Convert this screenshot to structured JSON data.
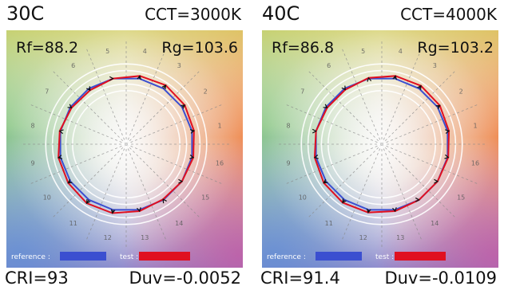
{
  "chart_data": [
    {
      "type": "color-vector-graphic",
      "panel_title": "30C",
      "cct": "CCT=3000K",
      "rf": "Rf=88.2",
      "rg": "Rg=103.6",
      "cri": "CRI=93",
      "duv": "Duv=-0.0052",
      "hue_bins": [
        "1",
        "2",
        "3",
        "4",
        "5",
        "6",
        "7",
        "8",
        "9",
        "10",
        "11",
        "12",
        "13",
        "14",
        "15",
        "16"
      ],
      "legend": {
        "reference_label": "reference :",
        "test_label": "test :"
      },
      "series": [
        {
          "name": "reference",
          "color": "#3b4fd0",
          "radius": [
            1,
            1,
            1,
            1,
            1,
            1,
            1,
            1,
            1,
            1,
            1,
            1,
            1,
            1,
            1,
            1
          ]
        },
        {
          "name": "test",
          "color": "#e01020",
          "radius": [
            1.03,
            1.05,
            1.06,
            1.04,
            1.0,
            0.97,
            0.98,
            1.01,
            1.03,
            1.04,
            1.06,
            1.05,
            1.02,
            0.99,
            1.0,
            1.02
          ]
        }
      ]
    },
    {
      "type": "color-vector-graphic",
      "panel_title": "40C",
      "cct": "CCT=4000K",
      "rf": "Rf=86.8",
      "rg": "Rg=103.2",
      "cri": "CRI=91.4",
      "duv": "Duv=-0.0109",
      "hue_bins": [
        "1",
        "2",
        "3",
        "4",
        "5",
        "6",
        "7",
        "8",
        "9",
        "10",
        "11",
        "12",
        "13",
        "14",
        "15",
        "16"
      ],
      "legend": {
        "reference_label": "reference :",
        "test_label": "test :"
      },
      "series": [
        {
          "name": "reference",
          "color": "#3b4fd0",
          "radius": [
            1,
            1,
            1,
            1,
            1,
            1,
            1,
            1,
            1,
            1,
            1,
            1,
            1,
            1,
            1,
            1
          ]
        },
        {
          "name": "test",
          "color": "#e01020",
          "radius": [
            1.02,
            1.04,
            1.05,
            1.04,
            1.01,
            0.98,
            0.98,
            1.0,
            1.02,
            1.04,
            1.05,
            1.04,
            1.02,
            1.0,
            1.0,
            1.01
          ]
        }
      ]
    }
  ]
}
